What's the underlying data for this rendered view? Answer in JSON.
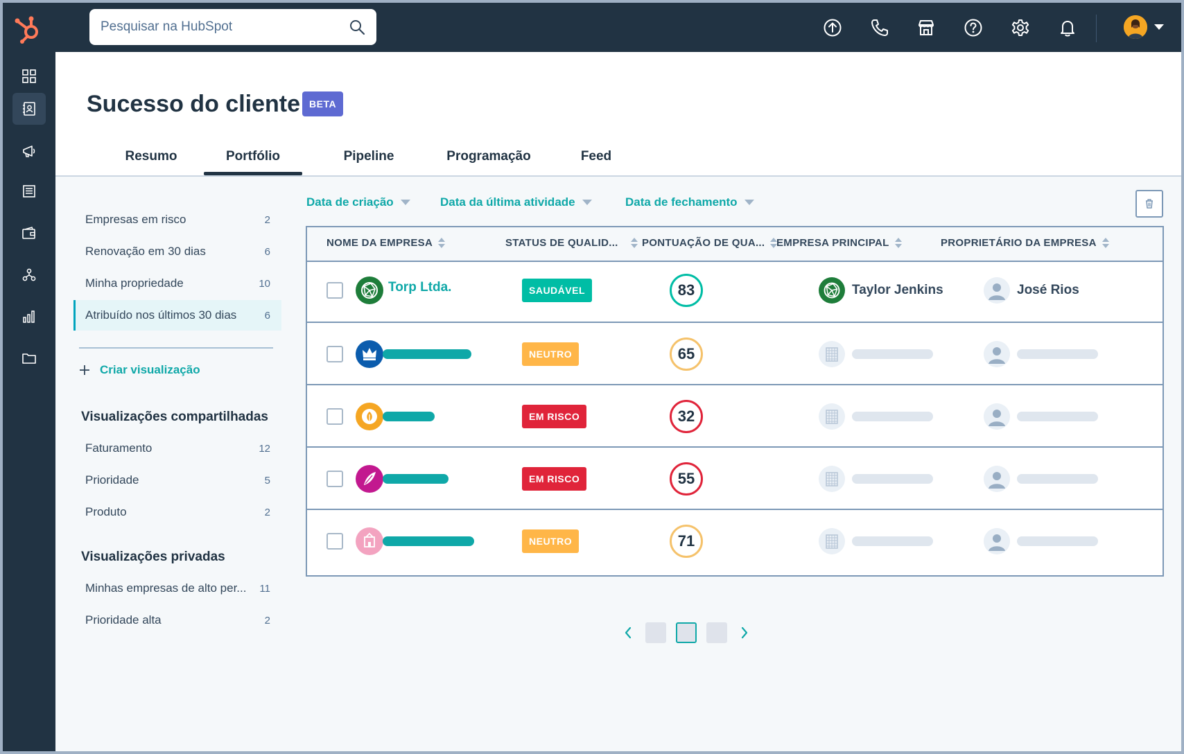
{
  "search": {
    "placeholder": "Pesquisar na HubSpot"
  },
  "topbar": {
    "icons": [
      "upgrade-icon",
      "phone-icon",
      "marketplace-icon",
      "help-icon",
      "settings-icon",
      "notifications-icon"
    ]
  },
  "leftnav": {
    "items": [
      "dashboard-icon",
      "contacts-icon",
      "marketing-icon",
      "content-icon",
      "commerce-icon",
      "automation-icon",
      "reports-icon",
      "library-icon"
    ],
    "active_index": 1
  },
  "page": {
    "title": "Sucesso do cliente",
    "badge": "BETA"
  },
  "tabs": [
    {
      "label": "Resumo"
    },
    {
      "label": "Portfólio",
      "active": true
    },
    {
      "label": "Pipeline"
    },
    {
      "label": "Programação"
    },
    {
      "label": "Feed"
    }
  ],
  "sidebar": {
    "views": [
      {
        "label": "Empresas em risco",
        "count": "2"
      },
      {
        "label": "Renovação em 30 dias",
        "count": "6"
      },
      {
        "label": "Minha propriedade",
        "count": "10"
      },
      {
        "label": "Atribuído nos últimos 30 dias",
        "count": "6",
        "active": true
      }
    ],
    "create_label": "Criar visualização",
    "shared_heading": "Visualizações compartilhadas",
    "shared": [
      {
        "label": "Faturamento",
        "count": "12"
      },
      {
        "label": "Prioridade",
        "count": "5"
      },
      {
        "label": "Produto",
        "count": "2"
      }
    ],
    "private_heading": "Visualizações privadas",
    "private": [
      {
        "label": "Minhas empresas de alto per...",
        "count": "11"
      },
      {
        "label": "Prioridade alta",
        "count": "2"
      }
    ]
  },
  "filters": [
    {
      "label": "Data de criação"
    },
    {
      "label": "Data da última atividade"
    },
    {
      "label": "Data de fechamento"
    }
  ],
  "table": {
    "columns": [
      "NOME DA EMPRESA",
      "STATUS DE QUALID...",
      "PONTUAÇÃO DE QUA...",
      "EMPRESA PRINCIPAL",
      "PROPRIETÁRIO DA EMPRESA"
    ],
    "rows": [
      {
        "company": "Torp Ltda.",
        "status": "SAUDÁVEL",
        "status_color": "#00bda5",
        "score": "83",
        "score_color": "#00bda5",
        "parent": "Taylor Jenkins",
        "owner": "José Rios",
        "logo_color": "#1e7d3a",
        "logo_icon": "globe-icon"
      },
      {
        "company": "",
        "status": "NEUTRO",
        "status_color": "#ffb648",
        "score": "65",
        "score_color": "#f5c26b",
        "parent": "",
        "owner": "",
        "logo_color": "#0b5cad",
        "logo_icon": "crown-icon"
      },
      {
        "company": "",
        "status": "EM RISCO",
        "status_color": "#e0243a",
        "score": "32",
        "score_color": "#e0243a",
        "parent": "",
        "owner": "",
        "logo_color": "#f5a623",
        "logo_icon": "leaf-icon"
      },
      {
        "company": "",
        "status": "EM RISCO",
        "status_color": "#e0243a",
        "score": "55",
        "score_color": "#e0243a",
        "parent": "",
        "owner": "",
        "logo_color": "#c2188f",
        "logo_icon": "feather-icon"
      },
      {
        "company": "",
        "status": "NEUTRO",
        "status_color": "#ffb648",
        "score": "71",
        "score_color": "#f5c26b",
        "parent": "",
        "owner": "",
        "logo_color": "#f3a3c0",
        "logo_icon": "building-icon"
      }
    ]
  },
  "pagination": {
    "pages": 3,
    "current": 2
  }
}
